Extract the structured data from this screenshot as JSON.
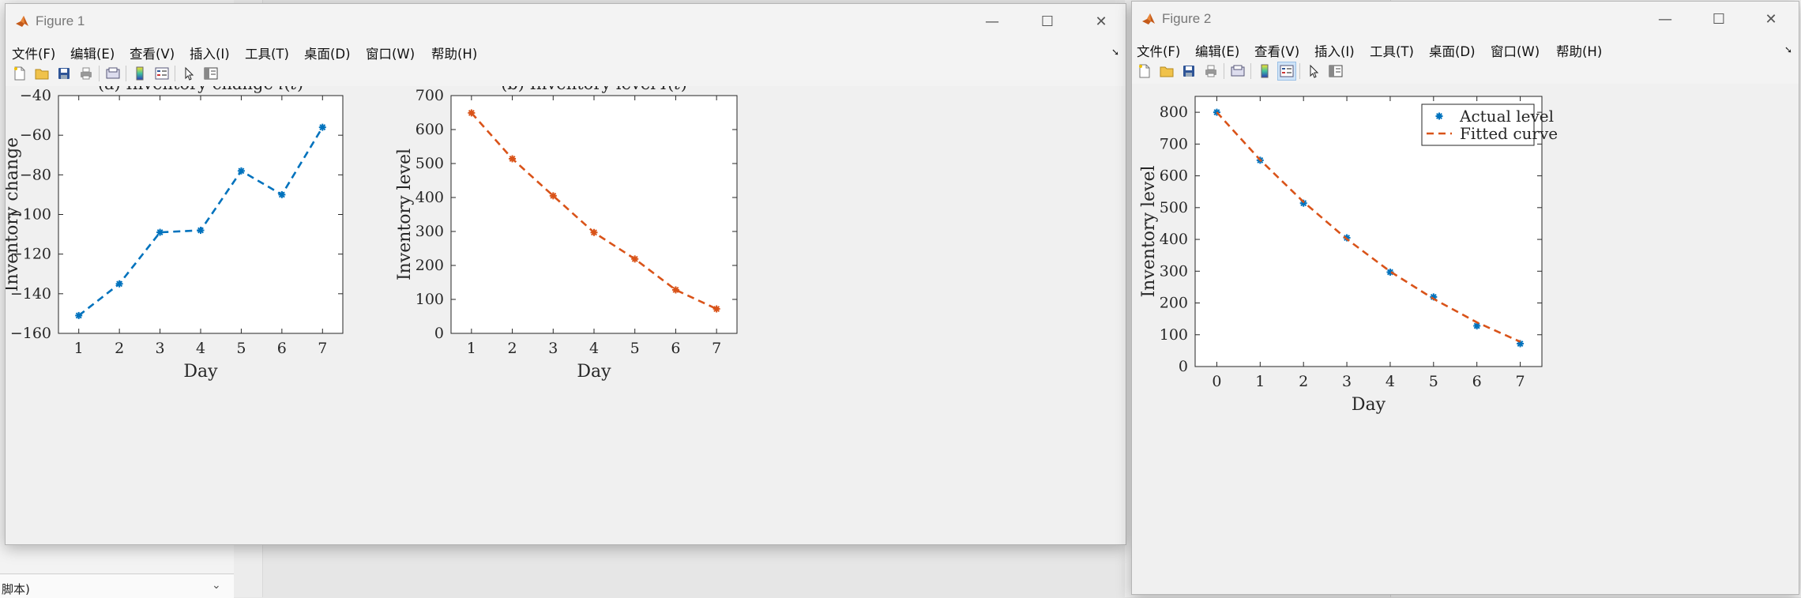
{
  "background": {
    "bottom_left_text": "脚本)"
  },
  "figure1": {
    "title": "Figure 1",
    "menus": [
      "文件(F)",
      "编辑(E)",
      "查看(V)",
      "插入(I)",
      "工具(T)",
      "桌面(D)",
      "窗口(W)",
      "帮助(H)"
    ],
    "toolbar_icons": [
      "new-file-icon",
      "open-folder-icon",
      "save-icon",
      "print-icon",
      "link-plot-icon",
      "colorbar-icon",
      "legend-icon",
      "pointer-icon",
      "property-inspector-icon"
    ]
  },
  "figure2": {
    "title": "Figure 2",
    "menus": [
      "文件(F)",
      "编辑(E)",
      "查看(V)",
      "插入(I)",
      "工具(T)",
      "桌面(D)",
      "窗口(W)",
      "帮助(H)"
    ],
    "toolbar_icons": [
      "new-file-icon",
      "open-folder-icon",
      "save-icon",
      "print-icon",
      "link-plot-icon",
      "colorbar-icon",
      "legend-icon",
      "pointer-icon",
      "property-inspector-icon"
    ]
  },
  "colors": {
    "blue": "#0072BD",
    "orange": "#D95319"
  },
  "chart_data": [
    {
      "type": "line",
      "title": "(a) Inventory change i(t)",
      "xlabel": "Day",
      "ylabel": "Inventory change",
      "x": [
        1,
        2,
        3,
        4,
        5,
        6,
        7
      ],
      "xticks": [
        "1",
        "2",
        "3",
        "4",
        "5",
        "6",
        "7"
      ],
      "xlim": [
        0.5,
        7.5
      ],
      "ylim": [
        -160,
        -40
      ],
      "yticks": [
        "-40",
        "-60",
        "-80",
        "-100",
        "-120",
        "-140",
        "-160"
      ],
      "series": [
        {
          "values": [
            -151,
            -135,
            -109,
            -108,
            -78,
            -90,
            -56
          ],
          "style": "dashed-line-asterisk",
          "color": "#0072BD"
        }
      ]
    },
    {
      "type": "line",
      "title": "(b) Inventory level I(t)",
      "xlabel": "Day",
      "ylabel": "Inventory level",
      "x": [
        1,
        2,
        3,
        4,
        5,
        6,
        7
      ],
      "xticks": [
        "1",
        "2",
        "3",
        "4",
        "5",
        "6",
        "7"
      ],
      "xlim": [
        0.5,
        7.5
      ],
      "ylim": [
        0,
        700
      ],
      "yticks": [
        "700",
        "600",
        "500",
        "400",
        "300",
        "200",
        "100",
        "0"
      ],
      "series": [
        {
          "values": [
            649,
            514,
            405,
            297,
            219,
            128,
            72
          ],
          "style": "dashed-line-asterisk",
          "color": "#D95319"
        }
      ]
    },
    {
      "type": "scatter",
      "xlabel": "Day",
      "ylabel": "Inventory level",
      "x": [
        0,
        1,
        2,
        3,
        4,
        5,
        6,
        7
      ],
      "xticks": [
        "0",
        "1",
        "2",
        "3",
        "4",
        "5",
        "6",
        "7"
      ],
      "xlim": [
        -0.5,
        7.5
      ],
      "ylim": [
        0,
        850
      ],
      "yticks": [
        "800",
        "700",
        "600",
        "500",
        "400",
        "300",
        "200",
        "100",
        "0"
      ],
      "legend_position": "top-right",
      "series": [
        {
          "name": "Actual level",
          "values": [
            800,
            649,
            514,
            405,
            297,
            219,
            128,
            72
          ],
          "style": "asterisk-markers",
          "color": "#0072BD"
        },
        {
          "name": "Fitted curve",
          "values": [
            800,
            650,
            518,
            401,
            299,
            213,
            139,
            78
          ],
          "style": "dashed-line",
          "color": "#D95319"
        }
      ]
    }
  ]
}
